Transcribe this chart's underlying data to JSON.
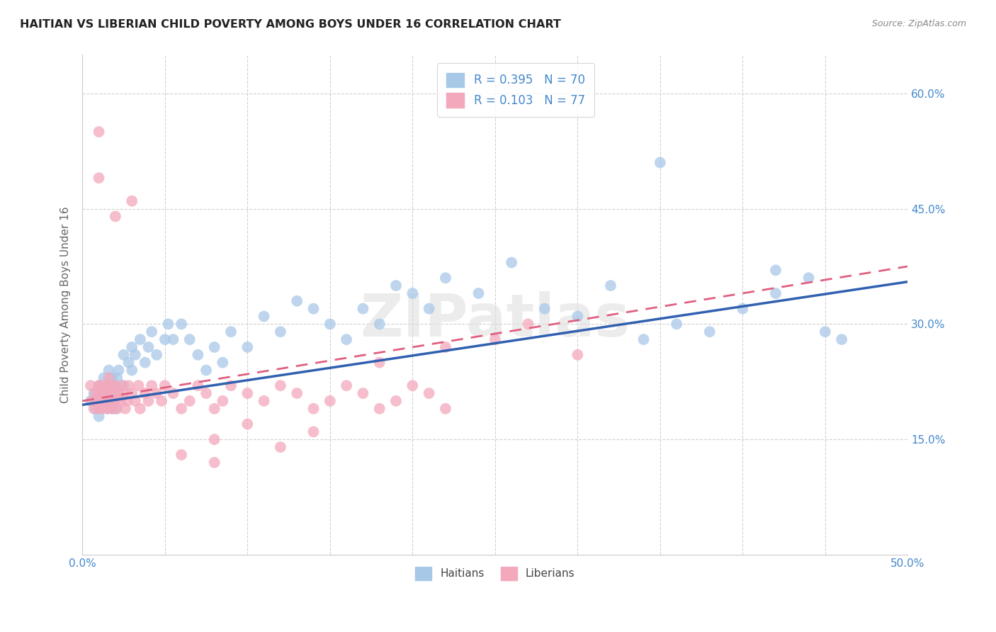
{
  "title": "HAITIAN VS LIBERIAN CHILD POVERTY AMONG BOYS UNDER 16 CORRELATION CHART",
  "source": "Source: ZipAtlas.com",
  "ylabel": "Child Poverty Among Boys Under 16",
  "xlim": [
    0.0,
    0.5
  ],
  "ylim": [
    0.0,
    0.65
  ],
  "xticks": [
    0.0,
    0.05,
    0.1,
    0.15,
    0.2,
    0.25,
    0.3,
    0.35,
    0.4,
    0.45,
    0.5
  ],
  "xtick_labels": [
    "0.0%",
    "",
    "",
    "",
    "",
    "",
    "",
    "",
    "",
    "",
    "50.0%"
  ],
  "yticks": [
    0.0,
    0.15,
    0.3,
    0.45,
    0.6
  ],
  "ytick_labels": [
    "",
    "15.0%",
    "30.0%",
    "45.0%",
    "60.0%"
  ],
  "bottom_legend": [
    "Haitians",
    "Liberians"
  ],
  "haitian_color": "#a8c8e8",
  "liberian_color": "#f4a8bc",
  "haitian_line_color": "#3060b0",
  "liberian_line_color": "#e06080",
  "watermark": "ZIPatlas",
  "haitian_line_x0": 0.0,
  "haitian_line_y0": 0.195,
  "haitian_line_x1": 0.5,
  "haitian_line_y1": 0.355,
  "liberian_line_x0": 0.0,
  "liberian_line_y0": 0.2,
  "liberian_line_x1": 0.5,
  "liberian_line_y1": 0.375,
  "haitian_x": [
    0.005,
    0.007,
    0.008,
    0.01,
    0.01,
    0.01,
    0.012,
    0.013,
    0.015,
    0.015,
    0.015,
    0.016,
    0.017,
    0.018,
    0.018,
    0.019,
    0.02,
    0.02,
    0.02,
    0.021,
    0.022,
    0.025,
    0.025,
    0.028,
    0.03,
    0.03,
    0.032,
    0.035,
    0.038,
    0.04,
    0.042,
    0.045,
    0.05,
    0.052,
    0.055,
    0.06,
    0.065,
    0.07,
    0.075,
    0.08,
    0.085,
    0.09,
    0.1,
    0.11,
    0.12,
    0.13,
    0.14,
    0.15,
    0.16,
    0.17,
    0.18,
    0.19,
    0.2,
    0.21,
    0.22,
    0.24,
    0.26,
    0.28,
    0.3,
    0.32,
    0.34,
    0.36,
    0.38,
    0.4,
    0.42,
    0.44,
    0.46,
    0.35,
    0.42,
    0.45
  ],
  "haitian_y": [
    0.2,
    0.21,
    0.19,
    0.22,
    0.2,
    0.18,
    0.21,
    0.23,
    0.22,
    0.2,
    0.19,
    0.24,
    0.21,
    0.19,
    0.23,
    0.2,
    0.22,
    0.21,
    0.19,
    0.23,
    0.24,
    0.26,
    0.22,
    0.25,
    0.27,
    0.24,
    0.26,
    0.28,
    0.25,
    0.27,
    0.29,
    0.26,
    0.28,
    0.3,
    0.28,
    0.3,
    0.28,
    0.26,
    0.24,
    0.27,
    0.25,
    0.29,
    0.27,
    0.31,
    0.29,
    0.33,
    0.32,
    0.3,
    0.28,
    0.32,
    0.3,
    0.35,
    0.34,
    0.32,
    0.36,
    0.34,
    0.38,
    0.32,
    0.31,
    0.35,
    0.28,
    0.3,
    0.29,
    0.32,
    0.34,
    0.36,
    0.28,
    0.51,
    0.37,
    0.29
  ],
  "liberian_x": [
    0.005,
    0.006,
    0.007,
    0.008,
    0.009,
    0.01,
    0.01,
    0.01,
    0.011,
    0.012,
    0.012,
    0.013,
    0.014,
    0.015,
    0.015,
    0.015,
    0.016,
    0.017,
    0.018,
    0.018,
    0.019,
    0.02,
    0.02,
    0.021,
    0.022,
    0.023,
    0.024,
    0.025,
    0.026,
    0.027,
    0.028,
    0.03,
    0.032,
    0.034,
    0.035,
    0.038,
    0.04,
    0.042,
    0.045,
    0.048,
    0.05,
    0.055,
    0.06,
    0.065,
    0.07,
    0.075,
    0.08,
    0.085,
    0.09,
    0.1,
    0.11,
    0.12,
    0.13,
    0.14,
    0.15,
    0.16,
    0.17,
    0.18,
    0.19,
    0.2,
    0.21,
    0.22,
    0.08,
    0.1,
    0.12,
    0.14,
    0.06,
    0.08,
    0.22,
    0.18,
    0.25,
    0.27,
    0.3,
    0.01,
    0.01,
    0.02,
    0.03
  ],
  "liberian_y": [
    0.22,
    0.2,
    0.19,
    0.21,
    0.2,
    0.22,
    0.21,
    0.19,
    0.2,
    0.22,
    0.19,
    0.21,
    0.2,
    0.22,
    0.19,
    0.21,
    0.23,
    0.2,
    0.22,
    0.19,
    0.21,
    0.22,
    0.2,
    0.19,
    0.21,
    0.2,
    0.22,
    0.21,
    0.19,
    0.2,
    0.22,
    0.21,
    0.2,
    0.22,
    0.19,
    0.21,
    0.2,
    0.22,
    0.21,
    0.2,
    0.22,
    0.21,
    0.19,
    0.2,
    0.22,
    0.21,
    0.19,
    0.2,
    0.22,
    0.21,
    0.2,
    0.22,
    0.21,
    0.19,
    0.2,
    0.22,
    0.21,
    0.19,
    0.2,
    0.22,
    0.21,
    0.19,
    0.15,
    0.17,
    0.14,
    0.16,
    0.13,
    0.12,
    0.27,
    0.25,
    0.28,
    0.3,
    0.26,
    0.55,
    0.49,
    0.44,
    0.46
  ]
}
